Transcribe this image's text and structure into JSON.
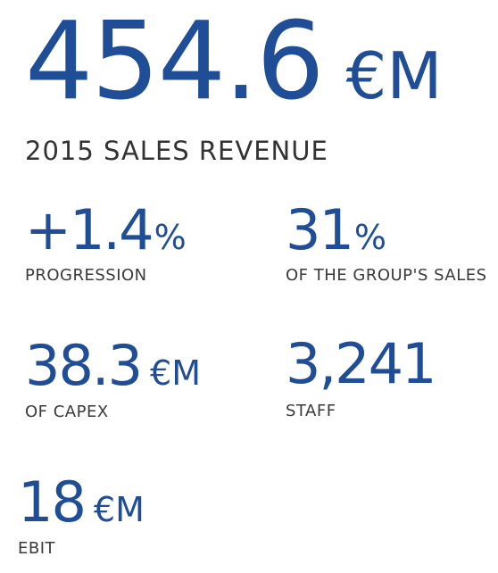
{
  "hero": {
    "value": "454.6",
    "unit": "€M",
    "label": "2015 SALES REVENUE"
  },
  "stats": {
    "progression": {
      "value": "+1.4",
      "unit": "%",
      "label": "PROGRESSION"
    },
    "group_sales": {
      "value": "31",
      "unit": "%",
      "label": "OF THE GROUP'S SALES"
    },
    "capex": {
      "value": "38.3",
      "unit": "€M",
      "label": "OF CAPEX"
    },
    "staff": {
      "value": "3,241",
      "label": "STAFF"
    },
    "ebit": {
      "value": "18",
      "unit": "€M",
      "label": "EBIT"
    }
  },
  "colors": {
    "accent": "#1f4e96",
    "text": "#333333"
  }
}
